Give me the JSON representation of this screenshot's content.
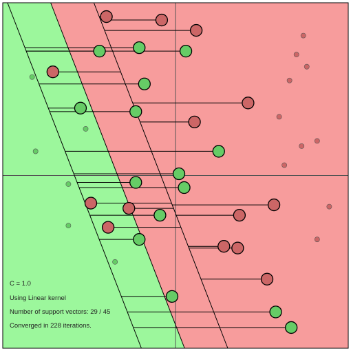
{
  "info": {
    "c_label": "C = 1.0",
    "kernel_label": "Using Linear kernel",
    "support_vectors_label": "Number of support vectors: 29 / 45",
    "iterations_label": "Converged in 228 iterations."
  },
  "colors": {
    "green_region": "#9cf79c",
    "red_region": "#f79c9c",
    "green_point": "#66cc66",
    "red_point": "#cc6666",
    "line": "#000000",
    "axis": "#555555"
  },
  "chart_data": {
    "type": "scatter",
    "xlim": [
      -1,
      1
    ],
    "ylim": [
      -1,
      1
    ],
    "decision_boundary": {
      "x0": -0.335,
      "slope": -2.58,
      "margin_dx": 0.25
    },
    "red_points": [
      {
        "x": -0.4,
        "y": 0.92,
        "sv": true
      },
      {
        "x": -0.08,
        "y": 0.9,
        "sv": true
      },
      {
        "x": 0.12,
        "y": 0.84,
        "sv": true
      },
      {
        "x": -0.71,
        "y": 0.6,
        "sv": true
      },
      {
        "x": 0.11,
        "y": 0.31,
        "sv": true
      },
      {
        "x": -0.49,
        "y": -0.16,
        "sv": true
      },
      {
        "x": -0.27,
        "y": -0.19,
        "sv": true
      },
      {
        "x": -0.39,
        "y": -0.3,
        "sv": true
      },
      {
        "x": 0.37,
        "y": -0.23,
        "sv": true
      },
      {
        "x": 0.57,
        "y": -0.17,
        "sv": true
      },
      {
        "x": 0.28,
        "y": -0.41,
        "sv": true
      },
      {
        "x": 0.36,
        "y": -0.42,
        "sv": true
      },
      {
        "x": 0.53,
        "y": -0.6,
        "sv": true
      },
      {
        "x": 0.42,
        "y": 0.42,
        "sv": true
      },
      {
        "x": 0.74,
        "y": 0.81,
        "sv": false
      },
      {
        "x": 0.7,
        "y": 0.7,
        "sv": false
      },
      {
        "x": 0.76,
        "y": 0.63,
        "sv": false
      },
      {
        "x": 0.66,
        "y": 0.55,
        "sv": false
      },
      {
        "x": 0.6,
        "y": 0.34,
        "sv": false
      },
      {
        "x": 0.82,
        "y": 0.2,
        "sv": false
      },
      {
        "x": 0.73,
        "y": 0.17,
        "sv": false
      },
      {
        "x": 0.63,
        "y": 0.06,
        "sv": false
      },
      {
        "x": 0.89,
        "y": -0.18,
        "sv": false
      },
      {
        "x": 0.82,
        "y": -0.37,
        "sv": false
      }
    ],
    "green_points": [
      {
        "x": -0.44,
        "y": 0.72,
        "sv": true
      },
      {
        "x": -0.21,
        "y": 0.74,
        "sv": true
      },
      {
        "x": 0.06,
        "y": 0.72,
        "sv": true
      },
      {
        "x": -0.18,
        "y": 0.53,
        "sv": true
      },
      {
        "x": -0.55,
        "y": 0.39,
        "sv": true
      },
      {
        "x": -0.23,
        "y": 0.37,
        "sv": true
      },
      {
        "x": 0.25,
        "y": 0.14,
        "sv": true
      },
      {
        "x": 0.02,
        "y": 0.01,
        "sv": true
      },
      {
        "x": -0.23,
        "y": -0.04,
        "sv": true
      },
      {
        "x": 0.05,
        "y": -0.07,
        "sv": true
      },
      {
        "x": -0.09,
        "y": -0.23,
        "sv": true
      },
      {
        "x": -0.21,
        "y": -0.37,
        "sv": true
      },
      {
        "x": -0.02,
        "y": -0.7,
        "sv": true
      },
      {
        "x": 0.58,
        "y": -0.79,
        "sv": true
      },
      {
        "x": 0.67,
        "y": -0.88,
        "sv": true
      },
      {
        "x": -0.83,
        "y": 0.57,
        "sv": false
      },
      {
        "x": -0.52,
        "y": 0.27,
        "sv": false
      },
      {
        "x": -0.81,
        "y": 0.14,
        "sv": false
      },
      {
        "x": -0.62,
        "y": -0.05,
        "sv": false
      },
      {
        "x": -0.62,
        "y": -0.29,
        "sv": false
      },
      {
        "x": -0.35,
        "y": -0.5,
        "sv": false
      }
    ]
  }
}
